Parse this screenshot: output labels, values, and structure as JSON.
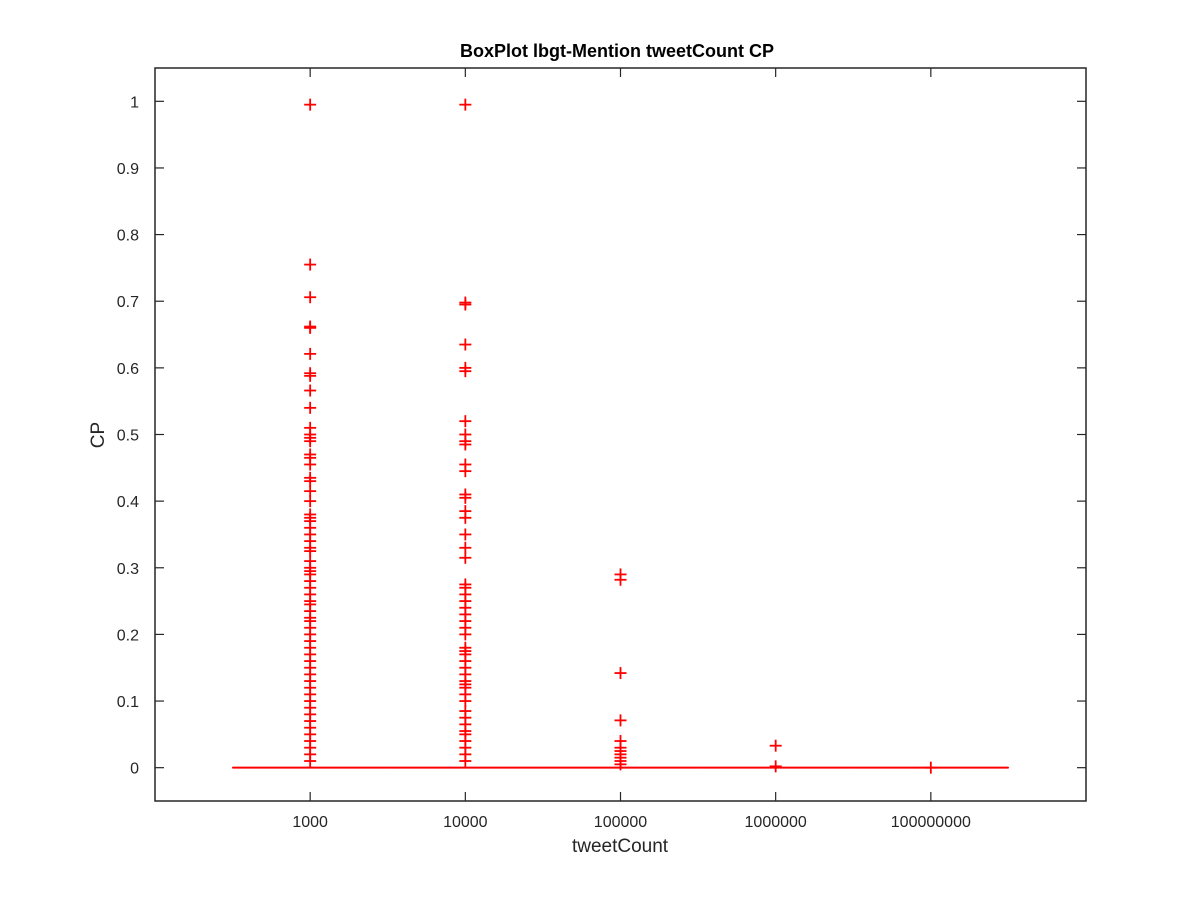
{
  "chart_data": {
    "type": "box",
    "title": "BoxPlot lbgt-Mention tweetCount CP",
    "xlabel": "tweetCount",
    "ylabel": "CP",
    "ylim": [
      -0.05,
      1.05
    ],
    "yticks": [
      "0",
      "0.1",
      "0.2",
      "0.3",
      "0.4",
      "0.5",
      "0.6",
      "0.7",
      "0.8",
      "0.9",
      "1"
    ],
    "categories": [
      "1000",
      "10000",
      "100000",
      "1000000",
      "100000000"
    ],
    "color": "#ff0000",
    "axis_color": "#262626",
    "grid": false,
    "groups": [
      {
        "category": "1000",
        "median": 0,
        "q1": 0,
        "q3": 0,
        "whisker_low": 0,
        "whisker_high": 0,
        "outliers": [
          0.995,
          0.755,
          0.706,
          0.662,
          0.66,
          0.621,
          0.592,
          0.588,
          0.566,
          0.54,
          0.51,
          0.5,
          0.495,
          0.49,
          0.47,
          0.465,
          0.455,
          0.435,
          0.43,
          0.415,
          0.4,
          0.38,
          0.375,
          0.37,
          0.36,
          0.35,
          0.34,
          0.33,
          0.325,
          0.31,
          0.3,
          0.295,
          0.29,
          0.28,
          0.27,
          0.26,
          0.25,
          0.245,
          0.235,
          0.225,
          0.22,
          0.21,
          0.2,
          0.19,
          0.18,
          0.17,
          0.16,
          0.15,
          0.14,
          0.13,
          0.12,
          0.11,
          0.1,
          0.09,
          0.08,
          0.07,
          0.06,
          0.05,
          0.04,
          0.03,
          0.02,
          0.01
        ]
      },
      {
        "category": "10000",
        "median": 0,
        "q1": 0,
        "q3": 0,
        "whisker_low": 0,
        "whisker_high": 0,
        "outliers": [
          0.995,
          0.698,
          0.695,
          0.635,
          0.6,
          0.595,
          0.52,
          0.5,
          0.49,
          0.485,
          0.455,
          0.445,
          0.41,
          0.405,
          0.385,
          0.375,
          0.35,
          0.33,
          0.315,
          0.275,
          0.27,
          0.26,
          0.25,
          0.24,
          0.23,
          0.22,
          0.21,
          0.2,
          0.18,
          0.175,
          0.17,
          0.16,
          0.15,
          0.14,
          0.13,
          0.125,
          0.12,
          0.11,
          0.1,
          0.085,
          0.075,
          0.065,
          0.055,
          0.05,
          0.04,
          0.03,
          0.02,
          0.01
        ]
      },
      {
        "category": "100000",
        "median": 0,
        "q1": 0,
        "q3": 0,
        "whisker_low": 0,
        "whisker_high": 0,
        "outliers": [
          0.29,
          0.282,
          0.142,
          0.071,
          0.04,
          0.03,
          0.025,
          0.02,
          0.015,
          0.01,
          0.005
        ]
      },
      {
        "category": "1000000",
        "median": 0,
        "q1": 0,
        "q3": 0,
        "whisker_low": 0,
        "whisker_high": 0,
        "outliers": [
          0.033,
          0.002
        ]
      },
      {
        "category": "100000000",
        "median": 0,
        "q1": 0,
        "q3": 0,
        "whisker_low": 0,
        "whisker_high": 0,
        "outliers": [
          0
        ]
      }
    ]
  }
}
